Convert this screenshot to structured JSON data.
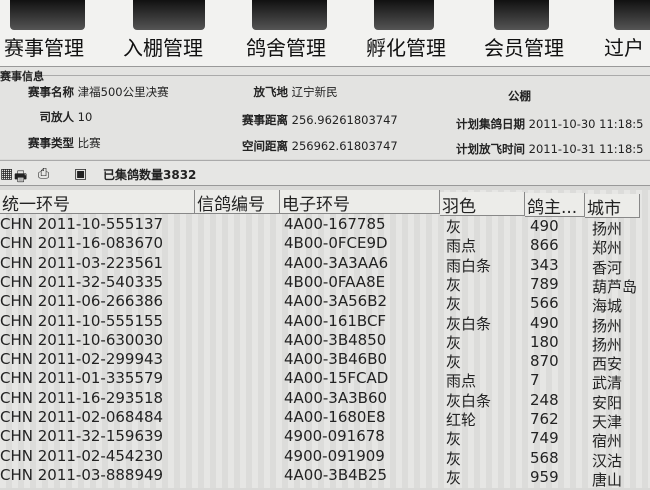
{
  "nav": [
    "赛事管理",
    "入棚管理",
    "鸽舍管理",
    "孵化管理",
    "会员管理",
    "过户"
  ],
  "info": {
    "legend": "赛事信息",
    "race_name_label": "赛事名称",
    "race_name": "津福500公里决赛",
    "release_place_label": "放飞地",
    "release_place": "辽宁新民",
    "loft": "公棚",
    "releaser_label": "司放人",
    "releaser": "10",
    "race_distance_label": "赛事距离",
    "race_distance": "256.96261803747",
    "collect_date_label": "计划集鸽日期",
    "collect_date": "2011-10-30 11:18:5",
    "race_type_label": "赛事类型",
    "race_type": "比赛",
    "space_distance_label": "空间距离",
    "space_distance": "256962.61803747",
    "release_time_label": "计划放飞时间",
    "release_time": "2011-10-31 11:18:5"
  },
  "toolbar": {
    "count_label": "已集鸽数量3832",
    "icons": [
      "grid-icon",
      "print-icon",
      "print-preview-icon",
      "export-icon"
    ]
  },
  "table": {
    "headers": [
      "统一环号",
      "信鸽编号",
      "电子环号",
      "羽色",
      "鸽主...",
      "城市"
    ],
    "rows": [
      [
        "CHN 2011-10-555137",
        "",
        "4A00-167785",
        "灰",
        "490",
        "扬州"
      ],
      [
        "CHN 2011-16-083670",
        "",
        "4B00-0FCE9D",
        "雨点",
        "866",
        "郑州"
      ],
      [
        "CHN 2011-03-223561",
        "",
        "4A00-3A3AA6",
        "雨白条",
        "343",
        "香河"
      ],
      [
        "CHN 2011-32-540335",
        "",
        "4B00-0FAA8E",
        "灰",
        "789",
        "葫芦岛"
      ],
      [
        "CHN 2011-06-266386",
        "",
        "4A00-3A56B2",
        "灰",
        "566",
        "海城"
      ],
      [
        "CHN 2011-10-555155",
        "",
        "4A00-161BCF",
        "灰白条",
        "490",
        "扬州"
      ],
      [
        "CHN 2011-10-630030",
        "",
        "4A00-3B4850",
        "灰",
        "180",
        "扬州"
      ],
      [
        "CHN 2011-02-299943",
        "",
        "4A00-3B46B0",
        "灰",
        "870",
        "西安"
      ],
      [
        "CHN 2011-01-335579",
        "",
        "4A00-15FCAD",
        "雨点",
        "7",
        "武清"
      ],
      [
        "CHN 2011-16-293518",
        "",
        "4A00-3A3B60",
        "灰白条",
        "248",
        "安阳"
      ],
      [
        "CHN 2011-02-068484",
        "",
        "4A00-1680E8",
        "红轮",
        "762",
        "天津"
      ],
      [
        "CHN 2011-32-159639",
        "",
        "4900-091678",
        "灰",
        "749",
        "宿州"
      ],
      [
        "CHN 2011-02-454230",
        "",
        "4900-091909",
        "灰",
        "568",
        "汉沽"
      ],
      [
        "CHN 2011-03-888949",
        "",
        "4A00-3B4B25",
        "灰",
        "959",
        "唐山"
      ]
    ]
  }
}
